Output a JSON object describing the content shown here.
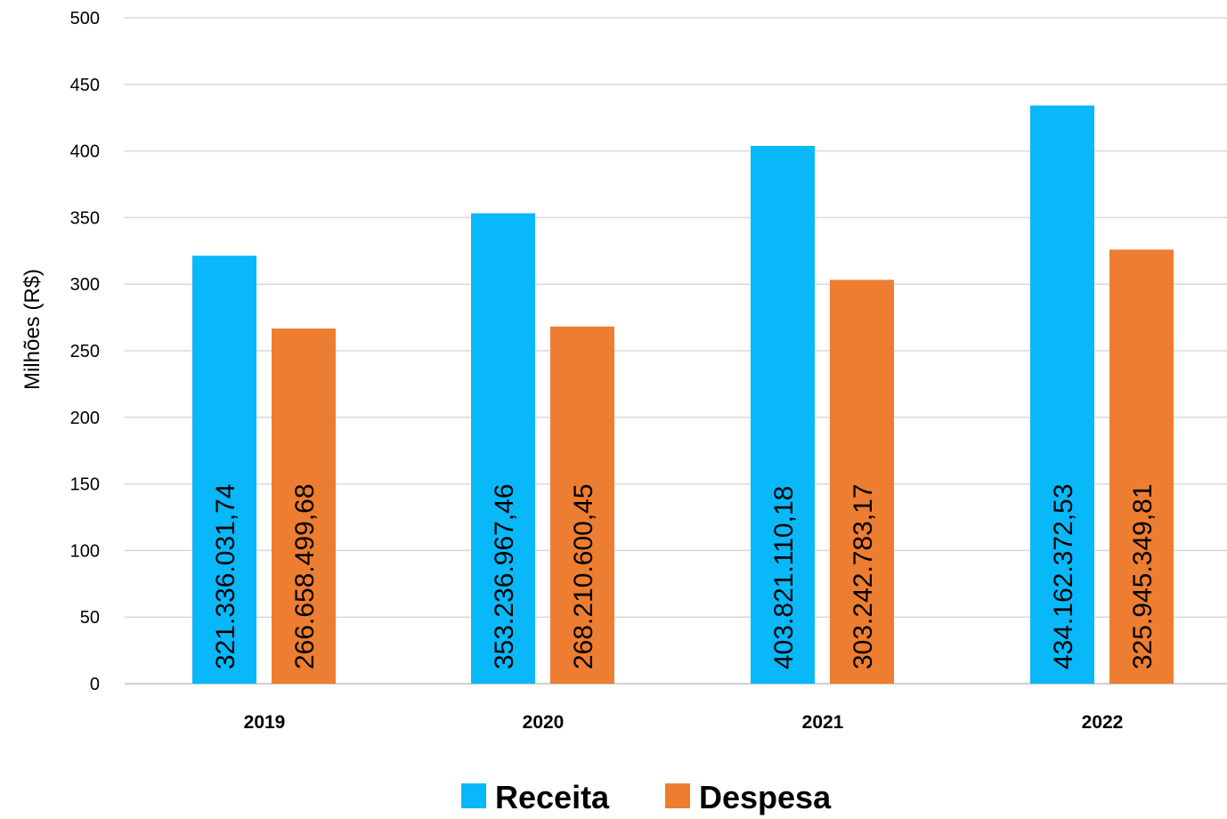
{
  "chart_data": {
    "type": "bar",
    "title": "",
    "xlabel": "",
    "ylabel": "Milhões (R$)",
    "ylim": [
      0,
      500
    ],
    "yticks": [
      "0",
      "50",
      "100",
      "150",
      "200",
      "250",
      "300",
      "350",
      "400",
      "450",
      "500"
    ],
    "grid": true,
    "legend_position": "bottom",
    "categories": [
      "2019",
      "2020",
      "2021",
      "2022"
    ],
    "series": [
      {
        "name": "Receita",
        "color": "#08B8F8",
        "values": [
          321.34,
          353.24,
          403.82,
          434.16
        ],
        "labels": [
          "321.336.031,74",
          "353.236.967,46",
          "403.821.110,18",
          "434.162.372,53"
        ]
      },
      {
        "name": "Despesa",
        "color": "#ED7D31",
        "values": [
          266.66,
          268.21,
          303.24,
          325.95
        ],
        "labels": [
          "266.658.499,68",
          "268.210.600,45",
          "303.242.783,17",
          "325.945.349,81"
        ]
      }
    ]
  }
}
